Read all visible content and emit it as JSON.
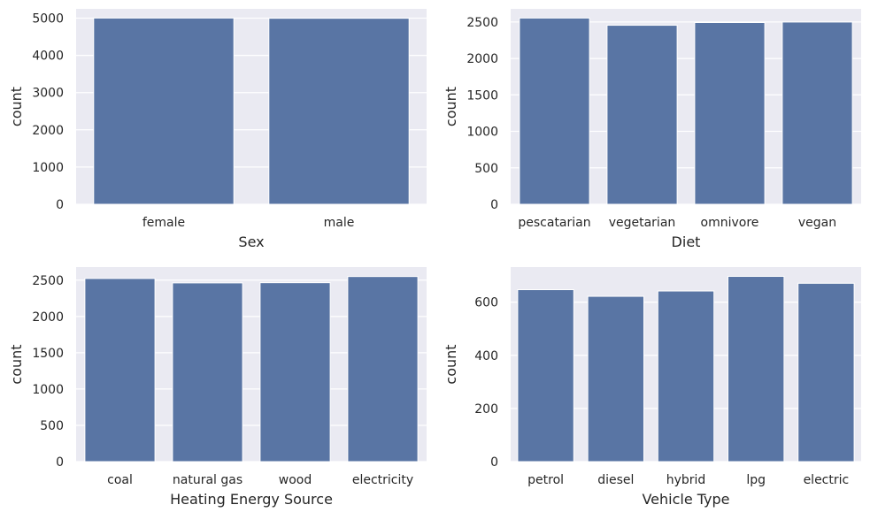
{
  "chart_data": [
    {
      "type": "bar",
      "categories": [
        "female",
        "male"
      ],
      "values": [
        5003,
        4997
      ],
      "xlabel": "Sex",
      "ylabel": "count",
      "ylim": [
        0,
        5250
      ],
      "yticks": [
        0,
        1000,
        2000,
        3000,
        4000,
        5000
      ],
      "grid": true,
      "bar_color": "#5975a4",
      "background": "#eaeaf2"
    },
    {
      "type": "bar",
      "categories": [
        "pescatarian",
        "vegetarian",
        "omnivore",
        "vegan"
      ],
      "values": [
        2554,
        2455,
        2492,
        2499
      ],
      "xlabel": "Diet",
      "ylabel": "count",
      "ylim": [
        0,
        2680
      ],
      "yticks": [
        0,
        500,
        1000,
        1500,
        2000,
        2500
      ],
      "grid": true,
      "bar_color": "#5975a4",
      "background": "#eaeaf2"
    },
    {
      "type": "bar",
      "categories": [
        "coal",
        "natural gas",
        "wood",
        "electricity"
      ],
      "values": [
        2523,
        2462,
        2465,
        2550
      ],
      "xlabel": "Heating Energy Source",
      "ylabel": "count",
      "ylim": [
        0,
        2680
      ],
      "yticks": [
        0,
        500,
        1000,
        1500,
        2000,
        2500
      ],
      "grid": true,
      "bar_color": "#5975a4",
      "background": "#eaeaf2"
    },
    {
      "type": "bar",
      "categories": [
        "petrol",
        "diesel",
        "hybrid",
        "lpg",
        "electric"
      ],
      "values": [
        647,
        622,
        642,
        697,
        671
      ],
      "xlabel": "Vehicle Type",
      "ylabel": "count",
      "ylim": [
        0,
        732
      ],
      "yticks": [
        0,
        200,
        400,
        600
      ],
      "grid": true,
      "bar_color": "#5975a4",
      "background": "#eaeaf2"
    }
  ]
}
